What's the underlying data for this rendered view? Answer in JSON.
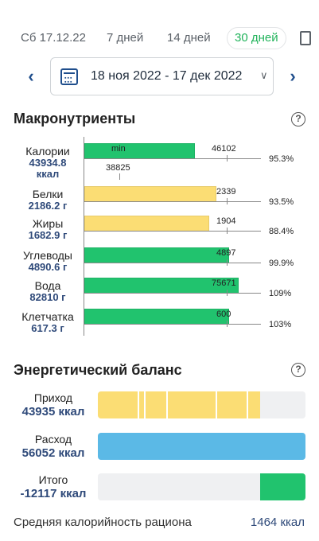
{
  "tabs": [
    {
      "label": "Сб 17.12.22",
      "active": false
    },
    {
      "label": "7 дней",
      "active": false
    },
    {
      "label": "14 дней",
      "active": false
    },
    {
      "label": "30 дней",
      "active": true
    }
  ],
  "date_range": {
    "label": "18 ноя 2022 - 17 дек 2022",
    "prev_icon": "chevron-left-icon",
    "next_icon": "chevron-right-icon"
  },
  "macros": {
    "title": "Макронутриенты",
    "help": "?",
    "rows": [
      {
        "name": "Калории",
        "value": "43934.8 ккал",
        "target_label": "46102",
        "percent": "95.3%",
        "fill_fraction": 0.624,
        "color": "green",
        "min_label": "min",
        "min_value": "38825"
      },
      {
        "name": "Белки",
        "value": "2186.2 г",
        "target_label": "2339",
        "percent": "93.5%",
        "fill_fraction": 0.748,
        "color": "yellow"
      },
      {
        "name": "Жиры",
        "value": "1682.9 г",
        "target_label": "1904",
        "percent": "88.4%",
        "fill_fraction": 0.708,
        "color": "yellow"
      },
      {
        "name": "Углеводы",
        "value": "4890.6 г",
        "target_label": "4897",
        "percent": "99.9%",
        "fill_fraction": 0.82,
        "color": "green"
      },
      {
        "name": "Вода",
        "value": "82810 г",
        "target_label": "75671",
        "percent": "109%",
        "fill_fraction": 0.876,
        "color": "green"
      },
      {
        "name": "Клетчатка",
        "value": "617.3 г",
        "target_label": "600",
        "percent": "103%",
        "fill_fraction": 0.82,
        "color": "green"
      }
    ]
  },
  "energy": {
    "title": "Энергетический баланс",
    "help": "?",
    "rows": [
      {
        "label": "Приход",
        "value": "43935 ккал",
        "fill_from": 0.0,
        "fill_to": 0.78,
        "color": "#fbdd74",
        "segments": true
      },
      {
        "label": "Расход",
        "value": "56052 ккал",
        "fill_from": 0.0,
        "fill_to": 1.0,
        "color": "#5bb9e6",
        "segments": false
      },
      {
        "label": "Итого",
        "value": "-12117 ккал",
        "fill_from": 0.78,
        "fill_to": 1.0,
        "color": "#21c36e",
        "segments": false
      }
    ]
  },
  "footer": {
    "label": "Средняя калорийность рациона",
    "value": "1464 ккал"
  },
  "colors": {
    "accent": "#21b35b",
    "value_text": "#2f4a7a",
    "nav": "#1f4e8c"
  }
}
